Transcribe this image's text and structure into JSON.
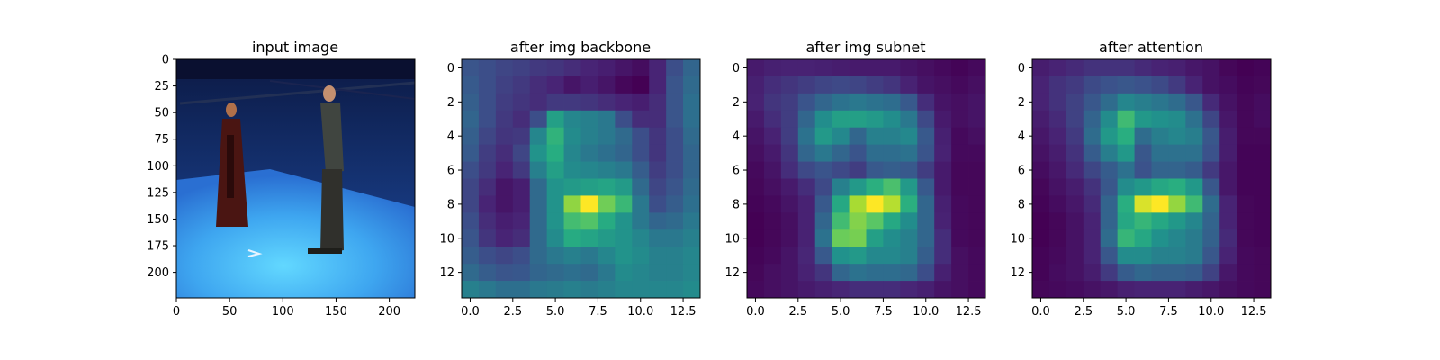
{
  "chart_data": [
    {
      "type": "image",
      "title": "input image",
      "xlim": [
        0,
        224
      ],
      "ylim": [
        224,
        0
      ],
      "xticks": [
        0,
        50,
        100,
        150,
        200
      ],
      "xtick_labels": [
        "0",
        "50",
        "100",
        "150",
        "200"
      ],
      "yticks": [
        0,
        25,
        50,
        75,
        100,
        125,
        150,
        175,
        200
      ],
      "ytick_labels": [
        "0",
        "25",
        "50",
        "75",
        "100",
        "125",
        "150",
        "175",
        "200"
      ]
    },
    {
      "type": "heatmap",
      "title": "after img backbone",
      "colormap": "viridis",
      "xlim": [
        -0.5,
        13.5
      ],
      "ylim": [
        13.5,
        -0.5
      ],
      "xticks": [
        0,
        2.5,
        5,
        7.5,
        10,
        12.5
      ],
      "xtick_labels": [
        "0.0",
        "2.5",
        "5.0",
        "7.5",
        "10.0",
        "12.5"
      ],
      "yticks": [
        0,
        2,
        4,
        6,
        8,
        10,
        12
      ],
      "ytick_labels": [
        "0",
        "2",
        "4",
        "6",
        "8",
        "10",
        "12"
      ],
      "values": [
        [
          0.32,
          0.3,
          0.28,
          0.27,
          0.25,
          0.24,
          0.22,
          0.2,
          0.18,
          0.15,
          0.12,
          0.2,
          0.3,
          0.38
        ],
        [
          0.34,
          0.3,
          0.27,
          0.25,
          0.22,
          0.2,
          0.15,
          0.18,
          0.15,
          0.1,
          0.08,
          0.2,
          0.32,
          0.4
        ],
        [
          0.36,
          0.3,
          0.26,
          0.24,
          0.22,
          0.25,
          0.25,
          0.24,
          0.22,
          0.2,
          0.18,
          0.22,
          0.32,
          0.42
        ],
        [
          0.38,
          0.3,
          0.25,
          0.22,
          0.3,
          0.6,
          0.5,
          0.48,
          0.45,
          0.3,
          0.22,
          0.22,
          0.32,
          0.42
        ],
        [
          0.36,
          0.28,
          0.24,
          0.25,
          0.5,
          0.68,
          0.52,
          0.48,
          0.45,
          0.4,
          0.3,
          0.24,
          0.3,
          0.4
        ],
        [
          0.34,
          0.26,
          0.22,
          0.28,
          0.55,
          0.66,
          0.5,
          0.45,
          0.42,
          0.38,
          0.3,
          0.24,
          0.3,
          0.38
        ],
        [
          0.3,
          0.25,
          0.2,
          0.25,
          0.48,
          0.6,
          0.52,
          0.5,
          0.48,
          0.45,
          0.35,
          0.26,
          0.3,
          0.38
        ],
        [
          0.28,
          0.22,
          0.15,
          0.18,
          0.4,
          0.55,
          0.58,
          0.6,
          0.62,
          0.58,
          0.4,
          0.28,
          0.32,
          0.4
        ],
        [
          0.28,
          0.2,
          0.15,
          0.18,
          0.4,
          0.55,
          0.85,
          1.0,
          0.8,
          0.7,
          0.45,
          0.3,
          0.35,
          0.42
        ],
        [
          0.3,
          0.22,
          0.18,
          0.2,
          0.4,
          0.55,
          0.72,
          0.75,
          0.65,
          0.55,
          0.45,
          0.38,
          0.4,
          0.45
        ],
        [
          0.32,
          0.24,
          0.2,
          0.22,
          0.4,
          0.52,
          0.65,
          0.62,
          0.58,
          0.55,
          0.5,
          0.45,
          0.45,
          0.48
        ],
        [
          0.35,
          0.3,
          0.28,
          0.3,
          0.4,
          0.45,
          0.48,
          0.45,
          0.5,
          0.55,
          0.52,
          0.48,
          0.48,
          0.5
        ],
        [
          0.4,
          0.35,
          0.32,
          0.33,
          0.38,
          0.4,
          0.42,
          0.4,
          0.45,
          0.52,
          0.5,
          0.48,
          0.48,
          0.5
        ],
        [
          0.48,
          0.45,
          0.42,
          0.42,
          0.45,
          0.46,
          0.48,
          0.46,
          0.48,
          0.5,
          0.5,
          0.5,
          0.5,
          0.52
        ]
      ]
    },
    {
      "type": "heatmap",
      "title": "after img subnet",
      "colormap": "viridis",
      "xlim": [
        -0.5,
        13.5
      ],
      "ylim": [
        13.5,
        -0.5
      ],
      "xticks": [
        0,
        2.5,
        5,
        7.5,
        10,
        12.5
      ],
      "xtick_labels": [
        "0.0",
        "2.5",
        "5.0",
        "7.5",
        "10.0",
        "12.5"
      ],
      "yticks": [
        0,
        2,
        4,
        6,
        8,
        10,
        12
      ],
      "ytick_labels": [
        "0",
        "2",
        "4",
        "6",
        "8",
        "10",
        "12"
      ],
      "values": [
        [
          0.12,
          0.14,
          0.15,
          0.15,
          0.14,
          0.13,
          0.12,
          0.12,
          0.12,
          0.1,
          0.08,
          0.06,
          0.04,
          0.06
        ],
        [
          0.14,
          0.18,
          0.2,
          0.22,
          0.24,
          0.25,
          0.24,
          0.22,
          0.2,
          0.15,
          0.1,
          0.08,
          0.06,
          0.08
        ],
        [
          0.15,
          0.2,
          0.22,
          0.28,
          0.35,
          0.4,
          0.42,
          0.4,
          0.38,
          0.3,
          0.18,
          0.1,
          0.08,
          0.1
        ],
        [
          0.12,
          0.18,
          0.22,
          0.35,
          0.5,
          0.58,
          0.58,
          0.55,
          0.5,
          0.42,
          0.25,
          0.12,
          0.08,
          0.1
        ],
        [
          0.1,
          0.15,
          0.22,
          0.4,
          0.55,
          0.48,
          0.35,
          0.45,
          0.45,
          0.48,
          0.3,
          0.14,
          0.06,
          0.08
        ],
        [
          0.08,
          0.12,
          0.2,
          0.35,
          0.42,
          0.35,
          0.28,
          0.38,
          0.38,
          0.4,
          0.28,
          0.15,
          0.06,
          0.06
        ],
        [
          0.06,
          0.1,
          0.18,
          0.25,
          0.28,
          0.25,
          0.22,
          0.3,
          0.32,
          0.3,
          0.22,
          0.12,
          0.05,
          0.05
        ],
        [
          0.05,
          0.08,
          0.12,
          0.18,
          0.25,
          0.45,
          0.55,
          0.65,
          0.72,
          0.55,
          0.3,
          0.12,
          0.05,
          0.05
        ],
        [
          0.04,
          0.06,
          0.1,
          0.15,
          0.3,
          0.62,
          0.88,
          1.0,
          0.9,
          0.65,
          0.35,
          0.14,
          0.06,
          0.05
        ],
        [
          0.03,
          0.05,
          0.08,
          0.15,
          0.35,
          0.7,
          0.82,
          0.75,
          0.62,
          0.5,
          0.35,
          0.15,
          0.06,
          0.05
        ],
        [
          0.03,
          0.05,
          0.08,
          0.15,
          0.4,
          0.78,
          0.8,
          0.58,
          0.5,
          0.45,
          0.35,
          0.18,
          0.06,
          0.05
        ],
        [
          0.04,
          0.06,
          0.1,
          0.16,
          0.3,
          0.52,
          0.55,
          0.48,
          0.48,
          0.45,
          0.32,
          0.18,
          0.08,
          0.06
        ],
        [
          0.05,
          0.08,
          0.1,
          0.15,
          0.2,
          0.35,
          0.4,
          0.38,
          0.38,
          0.36,
          0.26,
          0.14,
          0.08,
          0.06
        ],
        [
          0.06,
          0.08,
          0.1,
          0.12,
          0.14,
          0.16,
          0.18,
          0.18,
          0.18,
          0.16,
          0.14,
          0.1,
          0.08,
          0.06
        ]
      ]
    },
    {
      "type": "heatmap",
      "title": "after attention",
      "colormap": "viridis",
      "xlim": [
        -0.5,
        13.5
      ],
      "ylim": [
        13.5,
        -0.5
      ],
      "xticks": [
        0,
        2.5,
        5,
        7.5,
        10,
        12.5
      ],
      "xtick_labels": [
        "0.0",
        "2.5",
        "5.0",
        "7.5",
        "10.0",
        "12.5"
      ],
      "yticks": [
        0,
        2,
        4,
        6,
        8,
        10,
        12
      ],
      "ytick_labels": [
        "0",
        "2",
        "4",
        "6",
        "8",
        "10",
        "12"
      ],
      "values": [
        [
          0.14,
          0.16,
          0.18,
          0.2,
          0.2,
          0.2,
          0.18,
          0.16,
          0.15,
          0.12,
          0.1,
          0.06,
          0.04,
          0.05
        ],
        [
          0.16,
          0.2,
          0.22,
          0.26,
          0.28,
          0.3,
          0.28,
          0.26,
          0.22,
          0.16,
          0.1,
          0.08,
          0.05,
          0.06
        ],
        [
          0.16,
          0.2,
          0.24,
          0.3,
          0.38,
          0.48,
          0.45,
          0.42,
          0.38,
          0.3,
          0.18,
          0.1,
          0.06,
          0.08
        ],
        [
          0.14,
          0.18,
          0.24,
          0.35,
          0.5,
          0.7,
          0.55,
          0.52,
          0.5,
          0.4,
          0.25,
          0.12,
          0.06,
          0.08
        ],
        [
          0.12,
          0.16,
          0.22,
          0.38,
          0.55,
          0.65,
          0.38,
          0.45,
          0.48,
          0.45,
          0.3,
          0.14,
          0.06,
          0.06
        ],
        [
          0.1,
          0.14,
          0.2,
          0.32,
          0.45,
          0.55,
          0.3,
          0.4,
          0.4,
          0.4,
          0.28,
          0.14,
          0.05,
          0.05
        ],
        [
          0.08,
          0.12,
          0.18,
          0.25,
          0.32,
          0.4,
          0.28,
          0.35,
          0.35,
          0.32,
          0.22,
          0.12,
          0.05,
          0.05
        ],
        [
          0.06,
          0.1,
          0.14,
          0.2,
          0.3,
          0.5,
          0.55,
          0.62,
          0.65,
          0.55,
          0.3,
          0.12,
          0.05,
          0.05
        ],
        [
          0.05,
          0.08,
          0.12,
          0.18,
          0.35,
          0.65,
          0.95,
          1.0,
          0.85,
          0.7,
          0.38,
          0.16,
          0.06,
          0.05
        ],
        [
          0.04,
          0.06,
          0.1,
          0.16,
          0.35,
          0.62,
          0.68,
          0.62,
          0.55,
          0.48,
          0.35,
          0.16,
          0.06,
          0.05
        ],
        [
          0.04,
          0.06,
          0.1,
          0.16,
          0.38,
          0.68,
          0.62,
          0.52,
          0.48,
          0.44,
          0.34,
          0.18,
          0.06,
          0.05
        ],
        [
          0.05,
          0.07,
          0.1,
          0.16,
          0.3,
          0.5,
          0.5,
          0.46,
          0.46,
          0.44,
          0.3,
          0.16,
          0.07,
          0.06
        ],
        [
          0.05,
          0.08,
          0.1,
          0.14,
          0.22,
          0.32,
          0.36,
          0.34,
          0.34,
          0.32,
          0.24,
          0.12,
          0.07,
          0.06
        ],
        [
          0.06,
          0.07,
          0.08,
          0.1,
          0.12,
          0.15,
          0.16,
          0.16,
          0.16,
          0.14,
          0.12,
          0.09,
          0.07,
          0.06
        ]
      ]
    }
  ]
}
